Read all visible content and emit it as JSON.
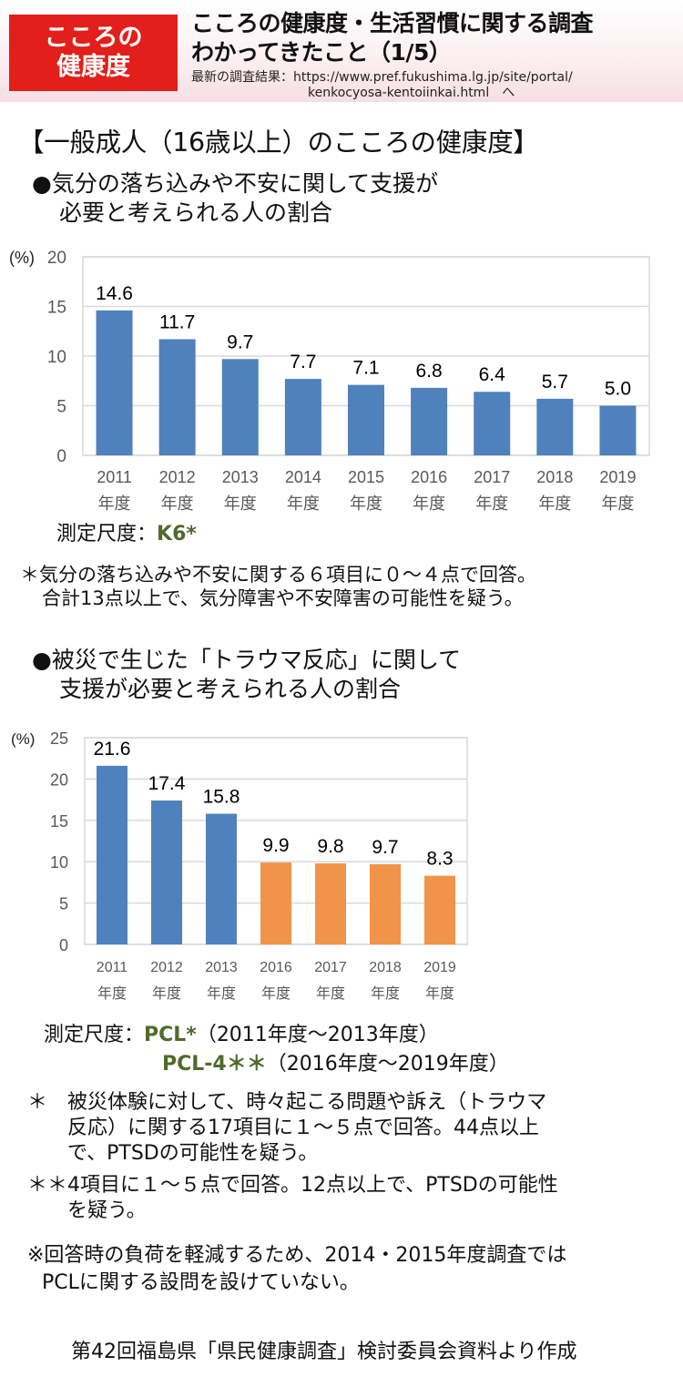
{
  "header": {
    "badge_line1": "こころの",
    "badge_line2": "健康度",
    "title_line1": "こころの健康度・生活習慣に関する調査",
    "title_line2": "わかってきたこと（1/5）",
    "link_label": "最新の調査結果：",
    "link_url_line1": "https://www.pref.fukushima.lg.jp/site/portal/",
    "link_url_line2": "kenkocyosa-kentoiinkai.html　へ",
    "badge_color": "#e21f1a"
  },
  "section_title": "【一般成人（16歳以上）のこころの健康度】",
  "section1": {
    "heading_line1": "●気分の落ち込みや不安に関して支援が",
    "heading_line2": "必要と考えられる人の割合",
    "scale_label": "測定尺度：",
    "scale_value": "K6*",
    "note_line1": "＊気分の落ち込みや不安に関する６項目に０～４点で回答。",
    "note_line2": "合計13点以上で、気分障害や不安障害の可能性を疑う。"
  },
  "section2": {
    "heading_line1": "●被災で生じた「トラウマ反応」に関して",
    "heading_line2": "支援が必要と考えられる人の割合",
    "scale_label": "測定尺度：",
    "scale_value1": "PCL*",
    "scale_range1": "（2011年度～2013年度）",
    "scale_value2": "PCL-4＊＊",
    "scale_range2": "（2016年度～2019年度）",
    "note1_mark": "＊",
    "note1_line1": "被災体験に対して、時々起こる問題や訴え（トラウマ",
    "note1_line2": "反応）に関する17項目に１～５点で回答。44点以上",
    "note1_line3": "で、PTSDの可能性を疑う。",
    "note2_mark": "＊＊",
    "note2_line1": "4項目に１～５点で回答。12点以上で、PTSDの可能性",
    "note2_line2": "を疑う。",
    "remark_line1": "※回答時の負荷を軽減するため、2014・2015年度調査では",
    "remark_line2": "PCLに関する設問を設けていない。"
  },
  "source": "第42回福島県「県民健康調査」検討委員会資料より作成",
  "chart_data": [
    {
      "type": "bar",
      "title": "気分の落ち込みや不安に関して支援が必要と考えられる人の割合",
      "ylabel": "(%)",
      "xlabel": "",
      "ylim": [
        0,
        20
      ],
      "yticks": [
        0,
        5,
        10,
        15,
        20
      ],
      "grid": true,
      "categories": [
        "2011",
        "2012",
        "2013",
        "2014",
        "2015",
        "2016",
        "2017",
        "2018",
        "2019"
      ],
      "category_suffix": "年度",
      "values": [
        14.6,
        11.7,
        9.7,
        7.7,
        7.1,
        6.8,
        6.4,
        5.7,
        5.0
      ],
      "value_labels": [
        "14.6",
        "11.7",
        "9.7",
        "7.7",
        "7.1",
        "6.8",
        "6.4",
        "5.7",
        "5.0"
      ],
      "bar_colors": [
        "#4f81bd",
        "#4f81bd",
        "#4f81bd",
        "#4f81bd",
        "#4f81bd",
        "#4f81bd",
        "#4f81bd",
        "#4f81bd",
        "#4f81bd"
      ]
    },
    {
      "type": "bar",
      "title": "被災で生じた「トラウマ反応」に関して支援が必要と考えられる人の割合",
      "ylabel": "(%)",
      "xlabel": "",
      "ylim": [
        0,
        25
      ],
      "yticks": [
        0,
        5,
        10,
        15,
        20,
        25
      ],
      "grid": true,
      "categories": [
        "2011",
        "2012",
        "2013",
        "2016",
        "2017",
        "2018",
        "2019"
      ],
      "category_suffix": "年度",
      "values": [
        21.6,
        17.4,
        15.8,
        9.9,
        9.8,
        9.7,
        8.3
      ],
      "value_labels": [
        "21.6",
        "17.4",
        "15.8",
        "9.9",
        "9.8",
        "9.7",
        "8.3"
      ],
      "series": [
        {
          "name": "PCL",
          "categories": [
            "2011",
            "2012",
            "2013"
          ],
          "color": "#4f81bd"
        },
        {
          "name": "PCL-4",
          "categories": [
            "2016",
            "2017",
            "2018",
            "2019"
          ],
          "color": "#f0944a"
        }
      ],
      "bar_colors": [
        "#4f81bd",
        "#4f81bd",
        "#4f81bd",
        "#f0944a",
        "#f0944a",
        "#f0944a",
        "#f0944a"
      ]
    }
  ]
}
